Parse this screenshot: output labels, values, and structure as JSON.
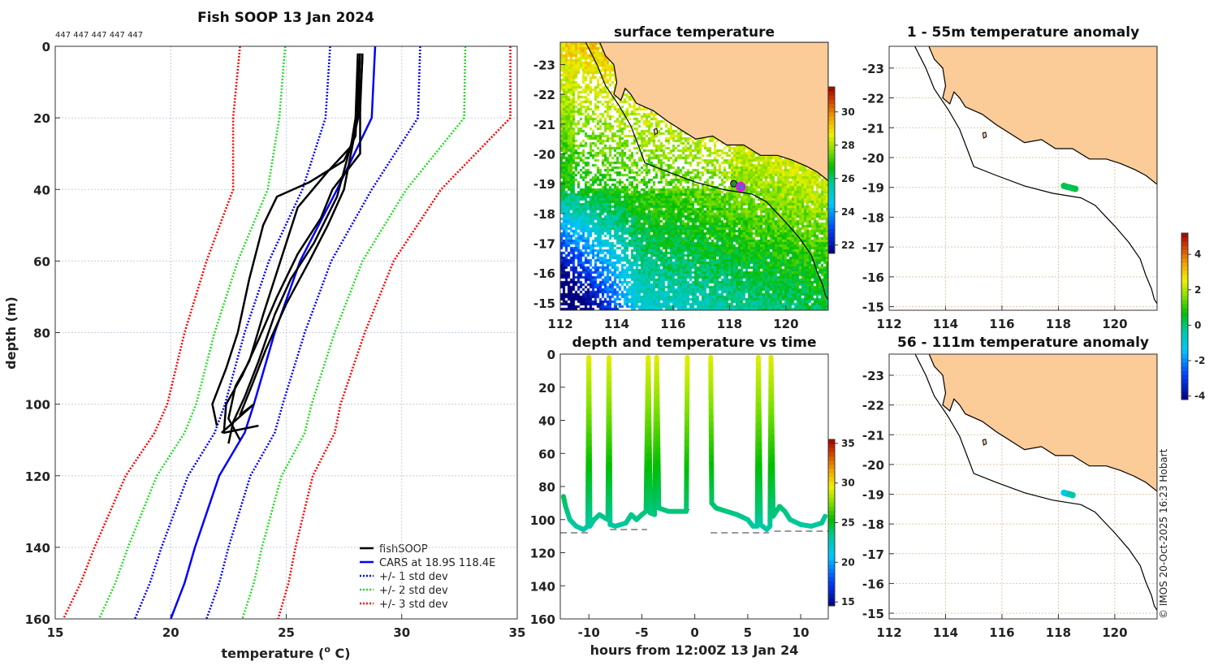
{
  "figure": {
    "title": "Fish SOOP 13 Jan 2024",
    "profile_ids": "447 447 447 447 447",
    "watermark": "© IMOS 20-Oct-2025 16:23 Hobart"
  },
  "colors": {
    "land": "#fbcb98",
    "cars": "#0000ff",
    "std1": "#0000ff",
    "std2": "#22dd22",
    "std3": "#ff0000",
    "fish": "#000000",
    "marker": "#ff00ff"
  },
  "chart_data": [
    {
      "type": "line",
      "panel": "profiles",
      "xlabel_prefix": "temperature (",
      "xlabel_sup": "o",
      "xlabel_suffix": " C)",
      "ylabel": "depth (m)",
      "xlim": [
        15,
        35
      ],
      "ylim": [
        0,
        160
      ],
      "y_reversed": true,
      "grid": true,
      "xticks": [
        15,
        20,
        25,
        30,
        35
      ],
      "yticks": [
        0,
        20,
        40,
        60,
        80,
        100,
        120,
        140,
        160
      ],
      "legend": {
        "placement": "bottom-right",
        "entries": [
          "fishSOOP",
          "CARS at 18.9S 118.4E",
          "+/- 1 std dev",
          "+/- 2 std dev",
          "+/- 3 std dev"
        ]
      },
      "cars": {
        "depth": [
          0,
          20,
          40,
          60,
          80,
          100,
          108,
          120,
          140,
          150,
          160
        ],
        "temp": [
          28.85,
          28.7,
          27.2,
          25.6,
          24.5,
          23.6,
          23.2,
          22.1,
          21.05,
          20.6,
          20.0
        ],
        "std": [
          1.95,
          2.0,
          1.5,
          1.35,
          1.3,
          1.25,
          1.3,
          1.35,
          1.45,
          1.5,
          1.55
        ]
      },
      "fishsoop_profiles": [
        [
          [
            28.2,
            2
          ],
          [
            28.1,
            10
          ],
          [
            28.0,
            25
          ],
          [
            27.5,
            32
          ],
          [
            26,
            38
          ],
          [
            24.6,
            42
          ],
          [
            24.0,
            50
          ],
          [
            23.4,
            65
          ],
          [
            22.9,
            80
          ],
          [
            22.4,
            90
          ],
          [
            21.8,
            100
          ],
          [
            22.0,
            106
          ]
        ],
        [
          [
            28.3,
            3
          ],
          [
            28.2,
            15
          ],
          [
            28.2,
            30
          ],
          [
            27,
            40
          ],
          [
            26.5,
            48
          ],
          [
            25.5,
            58
          ],
          [
            24.6,
            70
          ],
          [
            23.8,
            82
          ],
          [
            23.1,
            92
          ],
          [
            22.4,
            100
          ],
          [
            22.3,
            108
          ],
          [
            23.8,
            106
          ]
        ],
        [
          [
            28.1,
            2
          ],
          [
            28,
            20
          ],
          [
            27.8,
            28
          ],
          [
            26.8,
            35
          ],
          [
            25.5,
            45
          ],
          [
            25.0,
            55
          ],
          [
            24.0,
            75
          ],
          [
            23.4,
            88
          ],
          [
            22.8,
            95
          ],
          [
            22.5,
            104
          ],
          [
            23.0,
            110
          ]
        ],
        [
          [
            28.2,
            2
          ],
          [
            28.1,
            20
          ],
          [
            27.5,
            40
          ],
          [
            26.8,
            50
          ],
          [
            26,
            60
          ],
          [
            25,
            72
          ],
          [
            24.1,
            85
          ],
          [
            23.5,
            95
          ],
          [
            23.0,
            103
          ],
          [
            23.6,
            100
          ],
          [
            22.2,
            108
          ]
        ],
        [
          [
            28.3,
            2
          ],
          [
            28.2,
            18
          ],
          [
            27.7,
            30
          ],
          [
            27.2,
            42
          ],
          [
            26.2,
            55
          ],
          [
            25.2,
            65
          ],
          [
            24.5,
            75
          ],
          [
            23.8,
            88
          ],
          [
            23.2,
            98
          ],
          [
            22.7,
            105
          ],
          [
            22.5,
            111
          ]
        ]
      ]
    },
    {
      "type": "heatmap",
      "panel": "sst-map",
      "title": "surface temperature",
      "xlim": [
        112,
        121.5
      ],
      "ylim": [
        -23.75,
        -14.75
      ],
      "xticks": [
        112,
        114,
        116,
        118,
        120
      ],
      "yticks": [
        -15,
        -16,
        -17,
        -18,
        -19,
        -20,
        -21,
        -22,
        -23
      ],
      "colorbar": {
        "range": [
          21.5,
          31.5
        ],
        "ticks": [
          22,
          24,
          26,
          28,
          30
        ]
      },
      "marker": {
        "lon": 118.4,
        "lat": -18.9
      }
    },
    {
      "type": "scatter",
      "panel": "depth-time",
      "title": "depth and temperature vs time",
      "xlabel": "hours from 12:00Z 13 Jan 24",
      "xlim": [
        -12.7,
        12.6
      ],
      "ylim": [
        0,
        160
      ],
      "y_reversed": true,
      "xticks": [
        -10,
        -5,
        0,
        5,
        10
      ],
      "yticks": [
        0,
        20,
        40,
        60,
        80,
        100,
        120,
        140,
        160
      ],
      "colorbar": {
        "range": [
          14.5,
          35.5
        ],
        "ticks": [
          15,
          20,
          25,
          30,
          35
        ]
      },
      "segments": [
        [
          [
            -12.4,
            86
          ],
          [
            -12.2,
            92
          ],
          [
            -11.8,
            100
          ],
          [
            -11.2,
            104
          ],
          [
            -10.5,
            106
          ],
          [
            -10.1,
            104
          ],
          [
            -10,
            2
          ],
          [
            -9.9,
            104
          ],
          [
            -9.5,
            100
          ],
          [
            -9,
            97
          ],
          [
            -8.5,
            99
          ],
          [
            -8.2,
            100
          ],
          [
            -8.1,
            2
          ],
          [
            -8,
            103
          ],
          [
            -7.5,
            104
          ],
          [
            -6.5,
            102
          ],
          [
            -6,
            97
          ],
          [
            -5.5,
            100
          ],
          [
            -5,
            97
          ],
          [
            -4.6,
            95
          ],
          [
            -4.4,
            2
          ],
          [
            -4.2,
            96
          ],
          [
            -3.8,
            97
          ],
          [
            -3.6,
            2
          ],
          [
            -3.4,
            93
          ],
          [
            -2.5,
            95
          ],
          [
            -1.5,
            95
          ],
          [
            -0.8,
            95
          ],
          [
            -0.7,
            2
          ]
        ],
        [
          [
            1.5,
            2
          ],
          [
            1.6,
            90
          ],
          [
            2,
            93
          ],
          [
            3,
            95
          ],
          [
            4,
            97
          ],
          [
            5,
            100
          ],
          [
            5.5,
            104
          ],
          [
            5.9,
            104
          ],
          [
            6,
            2
          ],
          [
            6.2,
            103
          ],
          [
            6.8,
            106
          ],
          [
            7.1,
            104
          ],
          [
            7.2,
            2
          ],
          [
            7.4,
            98
          ],
          [
            8,
            92
          ],
          [
            8.5,
            95
          ],
          [
            9,
            100
          ],
          [
            10,
            103
          ],
          [
            11,
            104
          ],
          [
            12,
            102
          ],
          [
            12.3,
            98
          ]
        ]
      ],
      "surface_temp": 29.5,
      "temp_gradient_per_m": -0.06,
      "bottom_depth_lines": [
        [
          -12.7,
          -10,
          108
        ],
        [
          -8,
          -4.5,
          106
        ],
        [
          -4,
          -0.5,
          94
        ],
        [
          1.5,
          7,
          108
        ],
        [
          7.5,
          12.6,
          107
        ]
      ]
    },
    {
      "type": "scatter",
      "panel": "anomaly-1-55",
      "title": "1 - 55m temperature anomaly",
      "xlim": [
        112,
        121.5
      ],
      "ylim": [
        -23.73,
        -14.88
      ],
      "xticks": [
        112,
        114,
        116,
        118,
        120
      ],
      "yticks": [
        -15,
        -16,
        -17,
        -18,
        -19,
        -20,
        -21,
        -22,
        -23
      ],
      "points": [
        [
          118.2,
          -19.05,
          0.3
        ],
        [
          118.3,
          -19.02,
          0.2
        ],
        [
          118.4,
          -19.0,
          0.1
        ],
        [
          118.5,
          -18.97,
          0.2
        ],
        [
          118.6,
          -18.95,
          0.3
        ]
      ]
    },
    {
      "type": "scatter",
      "panel": "anomaly-56-111",
      "title": "56 - 111m temperature anomaly",
      "xlim": [
        112,
        121.5
      ],
      "ylim": [
        -23.71,
        -14.81
      ],
      "xticks": [
        112,
        114,
        116,
        118,
        120
      ],
      "yticks": [
        -15,
        -16,
        -17,
        -18,
        -19,
        -20,
        -21,
        -22,
        -23
      ],
      "points": [
        [
          118.2,
          -19.05,
          -1.3
        ],
        [
          118.3,
          -19.02,
          -0.9
        ],
        [
          118.4,
          -19.0,
          -0.6
        ],
        [
          118.5,
          -18.97,
          -0.3
        ]
      ],
      "colorbar": {
        "range": [
          -4.2,
          5.2
        ],
        "ticks": [
          4,
          2,
          0,
          -2,
          -4
        ]
      }
    }
  ],
  "coastline": [
    [
      113.4,
      -23.75
    ],
    [
      113.6,
      -23.3
    ],
    [
      113.9,
      -23
    ],
    [
      114.0,
      -22.4
    ],
    [
      113.9,
      -22.0
    ],
    [
      114.15,
      -21.8
    ],
    [
      114.3,
      -22.2
    ],
    [
      114.5,
      -22.0
    ],
    [
      114.7,
      -21.7
    ],
    [
      115.3,
      -21.45
    ],
    [
      115.8,
      -21.1
    ],
    [
      116.3,
      -20.8
    ],
    [
      116.8,
      -20.5
    ],
    [
      117.4,
      -20.6
    ],
    [
      117.9,
      -20.3
    ],
    [
      118.5,
      -20.3
    ],
    [
      119.1,
      -19.95
    ],
    [
      119.7,
      -19.95
    ],
    [
      120.2,
      -19.8
    ],
    [
      120.7,
      -19.6
    ],
    [
      121.1,
      -19.4
    ],
    [
      121.5,
      -19.1
    ],
    [
      121.5,
      -23.75
    ]
  ],
  "isobath": [
    [
      112.9,
      -23.75
    ],
    [
      113.3,
      -23.0
    ],
    [
      113.6,
      -22.3
    ],
    [
      114.1,
      -21.6
    ],
    [
      114.5,
      -20.95
    ],
    [
      114.8,
      -20.2
    ],
    [
      115.0,
      -19.7
    ],
    [
      115.8,
      -19.4
    ],
    [
      116.8,
      -19.05
    ],
    [
      117.8,
      -18.8
    ],
    [
      118.8,
      -18.65
    ],
    [
      119.3,
      -18.4
    ],
    [
      119.6,
      -18.1
    ],
    [
      120.0,
      -17.7
    ],
    [
      120.5,
      -17.15
    ],
    [
      120.9,
      -16.6
    ],
    [
      121.1,
      -16.05
    ],
    [
      121.3,
      -15.6
    ],
    [
      121.4,
      -15.25
    ],
    [
      121.5,
      -15.1
    ]
  ],
  "island": [
    [
      115.35,
      -20.65
    ],
    [
      115.45,
      -20.7
    ],
    [
      115.42,
      -20.85
    ],
    [
      115.32,
      -20.82
    ]
  ]
}
